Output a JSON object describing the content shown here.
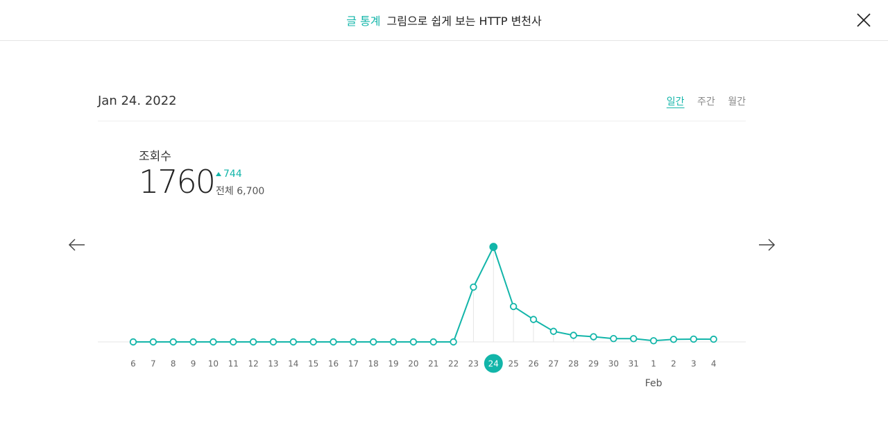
{
  "header": {
    "section_label": "글 통계",
    "post_title": "그림으로 쉽게 보는 HTTP 변천사",
    "close_icon": "close-icon"
  },
  "date_label": "Jan 24. 2022",
  "period_tabs": [
    {
      "label": "일간",
      "active": true
    },
    {
      "label": "주간",
      "active": false
    },
    {
      "label": "월간",
      "active": false
    }
  ],
  "stats": {
    "label": "조회수",
    "value": "1760",
    "delta": "744",
    "total": "전체 6,700"
  },
  "nav": {
    "prev_icon": "arrow-left-icon",
    "next_icon": "arrow-right-icon"
  },
  "colors": {
    "accent": "#12b5a9",
    "grid": "#e6e6e6",
    "axis_text": "#666666"
  },
  "chart_data": {
    "type": "line",
    "x": [
      "6",
      "7",
      "8",
      "9",
      "10",
      "11",
      "12",
      "13",
      "14",
      "15",
      "16",
      "17",
      "18",
      "19",
      "20",
      "21",
      "22",
      "23",
      "24",
      "25",
      "26",
      "27",
      "28",
      "29",
      "30",
      "31",
      "1",
      "2",
      "3",
      "4"
    ],
    "values": [
      0,
      0,
      0,
      0,
      0,
      0,
      0,
      0,
      0,
      0,
      0,
      0,
      0,
      0,
      0,
      0,
      0,
      1016,
      1760,
      656,
      416,
      196,
      122,
      96,
      62,
      60,
      22,
      48,
      52,
      50
    ],
    "selected": "24",
    "month_marker": {
      "at": "1",
      "label": "Feb"
    },
    "ylim": [
      0,
      1760
    ],
    "grid": false,
    "legend": "none"
  }
}
